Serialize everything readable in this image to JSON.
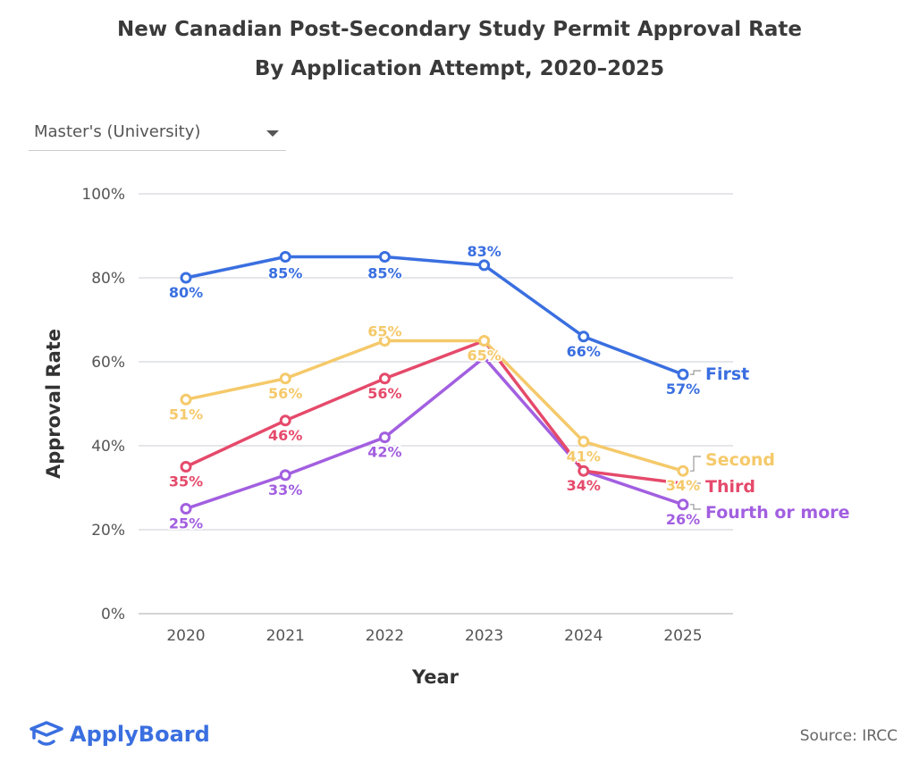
{
  "title_line1": "New Canadian Post-Secondary Study Permit Approval Rate",
  "title_line2": "By Application Attempt, 2020–2025",
  "dropdown": {
    "selected": "Master's (University)",
    "icon": "caret-down-icon"
  },
  "logo": {
    "text": "ApplyBoard",
    "icon": "graduation-cap-icon"
  },
  "source": "Source: IRCC",
  "chart_data": {
    "type": "line",
    "xlabel": "Year",
    "ylabel": "Approval Rate",
    "categories": [
      "2020",
      "2021",
      "2022",
      "2023",
      "2024",
      "2025"
    ],
    "ylim": [
      0,
      100
    ],
    "yticks": [
      "0%",
      "20%",
      "40%",
      "60%",
      "80%",
      "100%"
    ],
    "grid": true,
    "legend": "inline-right",
    "series": [
      {
        "name": "First",
        "color": "#3a6fe0",
        "values": [
          80,
          85,
          85,
          83,
          66,
          57
        ],
        "labels": [
          "80%",
          "85%",
          "85%",
          "83%",
          "66%",
          "57%"
        ]
      },
      {
        "name": "Second",
        "color": "#f5c96a",
        "values": [
          51,
          56,
          65,
          65,
          41,
          34
        ],
        "labels": [
          "51%",
          "56%",
          "65%",
          "65%",
          "41%",
          "34%"
        ]
      },
      {
        "name": "Third",
        "color": "#e54a6b",
        "values": [
          35,
          46,
          56,
          65,
          34,
          31
        ],
        "labels": [
          "35%",
          "46%",
          "56%",
          "",
          "34%",
          ""
        ]
      },
      {
        "name": "Fourth or more",
        "color": "#a25fe0",
        "values": [
          25,
          33,
          42,
          61,
          34,
          26
        ],
        "labels": [
          "25%",
          "33%",
          "42%",
          "",
          "",
          "26%"
        ]
      }
    ]
  }
}
